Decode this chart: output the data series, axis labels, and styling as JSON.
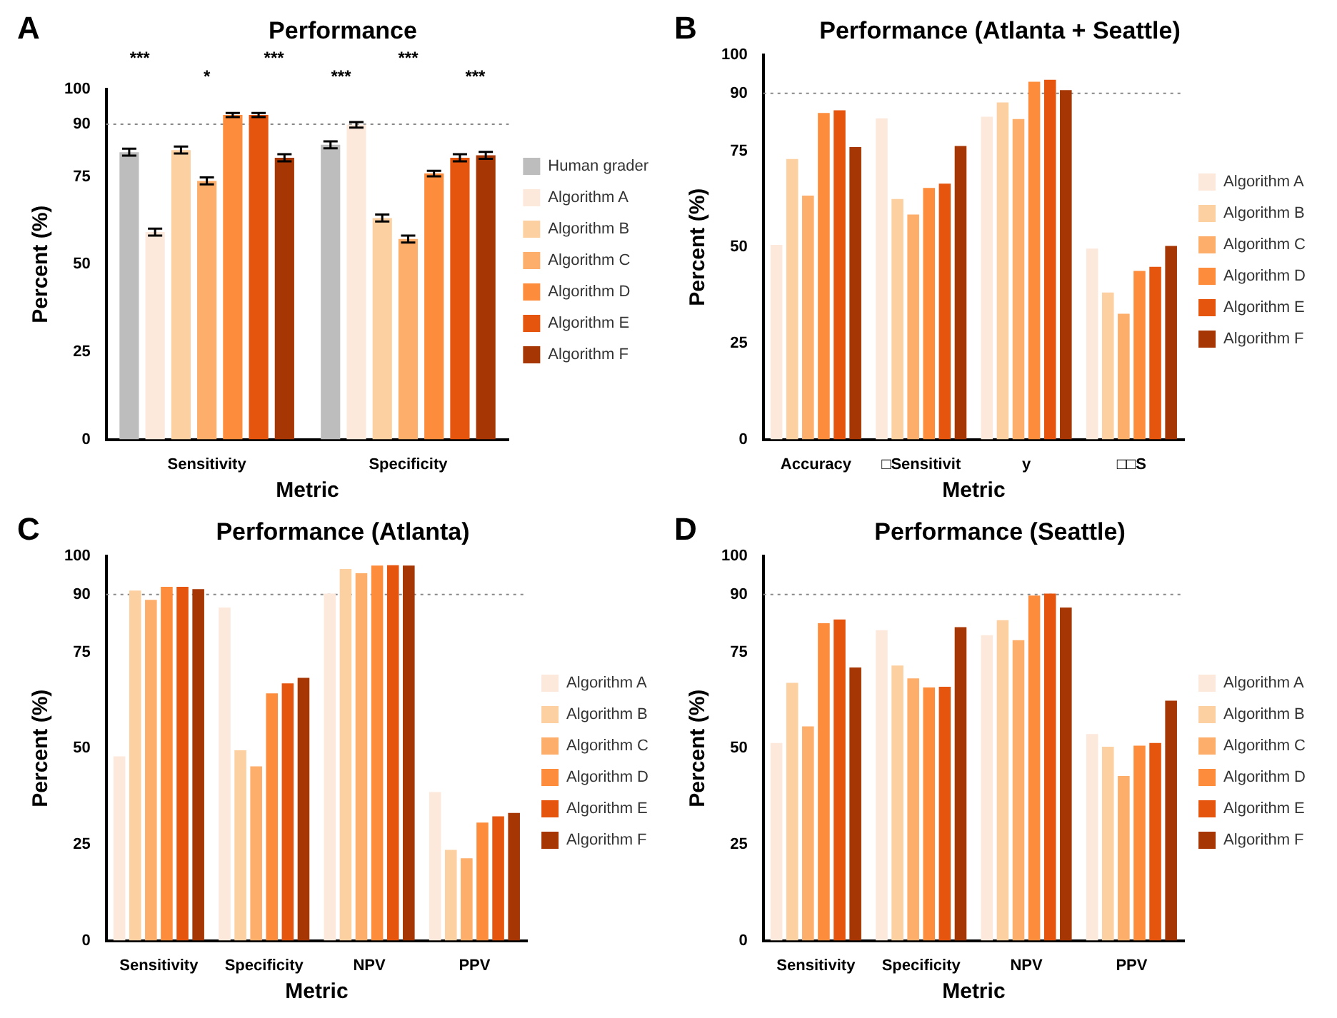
{
  "chart_data": [
    {
      "type": "bar",
      "title": "Performance",
      "xlabel": "Metric",
      "ylabel": "Percent (%)",
      "categories": [
        "Sensitivity",
        "Specificity"
      ],
      "series": [
        {
          "name": "Human grader",
          "color": "#bdbdbd",
          "values": [
            82.0,
            84.1
          ],
          "errors": [
            1,
            1
          ]
        },
        {
          "name": "Algorithm A",
          "color": "#fde9dc",
          "values": [
            59.2,
            89.8
          ],
          "errors": [
            1,
            0.8
          ]
        },
        {
          "name": "Algorithm B",
          "color": "#fdd0a2",
          "values": [
            82.6,
            63.2
          ],
          "errors": [
            1,
            1
          ]
        },
        {
          "name": "Algorithm C",
          "color": "#fdae6b",
          "values": [
            73.8,
            57.2
          ],
          "errors": [
            1,
            1
          ]
        },
        {
          "name": "Algorithm D",
          "color": "#fd8d3c",
          "values": [
            92.6,
            75.9
          ],
          "errors": [
            0.6,
            0.8
          ]
        },
        {
          "name": "Algorithm E",
          "color": "#e6550d",
          "values": [
            92.6,
            80.4
          ],
          "errors": [
            0.6,
            1
          ]
        },
        {
          "name": "Algorithm F",
          "color": "#a63603",
          "values": [
            80.4,
            81.1
          ],
          "errors": [
            1,
            1
          ]
        }
      ],
      "ylim": [
        0,
        100
      ],
      "yticks": [
        0,
        25,
        50,
        75,
        90,
        100
      ],
      "grid": false,
      "legend": "right",
      "ref_lines": [
        {
          "axis": "y",
          "value": 90,
          "color": "#888888",
          "line_style": "dotted"
        }
      ],
      "annotations": [
        "A",
        "***",
        "*",
        "***",
        "***",
        "***",
        "***"
      ]
    },
    {
      "type": "bar",
      "title": "Performance (Atlanta + Seattle)",
      "xlabel": "Metric",
      "ylabel": "Percent (%)",
      "categories": [
        "Accuracy",
        "□Sensitivit",
        "y",
        "□□S"
      ],
      "series": [
        {
          "name": "Algorithm A",
          "color": "#fde9dc",
          "values": [
            50.6,
            83.5,
            83.9,
            49.6
          ]
        },
        {
          "name": "Algorithm B",
          "color": "#fdd0a2",
          "values": [
            72.9,
            62.5,
            87.6,
            38.2
          ]
        },
        {
          "name": "Algorithm C",
          "color": "#fdae6b",
          "values": [
            63.4,
            58.5,
            83.3,
            32.7
          ]
        },
        {
          "name": "Algorithm D",
          "color": "#fd8d3c",
          "values": [
            84.9,
            65.4,
            93.0,
            43.8
          ]
        },
        {
          "name": "Algorithm E",
          "color": "#e6550d",
          "values": [
            85.6,
            66.5,
            93.5,
            44.9
          ]
        },
        {
          "name": "Algorithm F",
          "color": "#a63603",
          "values": [
            76.0,
            76.3,
            90.8,
            50.3
          ]
        }
      ],
      "ylim": [
        0,
        100
      ],
      "yticks": [
        0,
        25,
        50,
        75,
        90,
        100
      ],
      "grid": false,
      "legend": "right",
      "ref_lines": [
        {
          "axis": "y",
          "value": 90,
          "color": "#888888",
          "line_style": "dotted"
        }
      ],
      "annotations": [
        "B"
      ]
    },
    {
      "type": "bar",
      "title": "Performance (Atlanta)",
      "xlabel": "Metric",
      "ylabel": "Percent (%)",
      "categories": [
        "Sensitivity",
        "Specificity",
        "NPV",
        "PPV"
      ],
      "series": [
        {
          "name": "Algorithm A",
          "color": "#fde9dc",
          "values": [
            47.9,
            86.6,
            90.2,
            38.6
          ]
        },
        {
          "name": "Algorithm B",
          "color": "#fdd0a2",
          "values": [
            91.0,
            49.5,
            96.6,
            23.6
          ]
        },
        {
          "name": "Algorithm C",
          "color": "#fdae6b",
          "values": [
            88.6,
            45.3,
            95.5,
            21.4
          ]
        },
        {
          "name": "Algorithm D",
          "color": "#fd8d3c",
          "values": [
            92.0,
            64.3,
            97.5,
            30.7
          ]
        },
        {
          "name": "Algorithm E",
          "color": "#e6550d",
          "values": [
            92.0,
            66.9,
            97.6,
            32.3
          ]
        },
        {
          "name": "Algorithm F",
          "color": "#a63603",
          "values": [
            91.4,
            68.3,
            97.5,
            33.2
          ]
        }
      ],
      "ylim": [
        0,
        100
      ],
      "yticks": [
        0,
        25,
        50,
        75,
        90,
        100
      ],
      "grid": false,
      "legend": "right",
      "ref_lines": [
        {
          "axis": "y",
          "value": 90,
          "color": "#888888",
          "line_style": "dotted"
        }
      ],
      "annotations": [
        "C"
      ]
    },
    {
      "type": "bar",
      "title": "Performance (Seattle)",
      "xlabel": "Metric",
      "ylabel": "Percent (%)",
      "categories": [
        "Sensitivity",
        "Specificity",
        "NPV",
        "PPV"
      ],
      "series": [
        {
          "name": "Algorithm A",
          "color": "#fde9dc",
          "values": [
            51.4,
            80.7,
            79.4,
            53.7
          ]
        },
        {
          "name": "Algorithm B",
          "color": "#fdd0a2",
          "values": [
            67.0,
            71.5,
            83.3,
            50.4
          ]
        },
        {
          "name": "Algorithm C",
          "color": "#fdae6b",
          "values": [
            55.7,
            68.2,
            78.1,
            42.8
          ]
        },
        {
          "name": "Algorithm D",
          "color": "#fd8d3c",
          "values": [
            82.5,
            65.8,
            89.7,
            50.7
          ]
        },
        {
          "name": "Algorithm E",
          "color": "#e6550d",
          "values": [
            83.5,
            66.0,
            90.2,
            51.4
          ]
        },
        {
          "name": "Algorithm F",
          "color": "#a63603",
          "values": [
            71.0,
            81.5,
            86.6,
            62.4
          ]
        }
      ],
      "ylim": [
        0,
        100
      ],
      "yticks": [
        0,
        25,
        50,
        75,
        90,
        100
      ],
      "grid": false,
      "legend": "right",
      "ref_lines": [
        {
          "axis": "y",
          "value": 90,
          "color": "#888888",
          "line_style": "dotted"
        }
      ],
      "annotations": [
        "D"
      ]
    }
  ]
}
